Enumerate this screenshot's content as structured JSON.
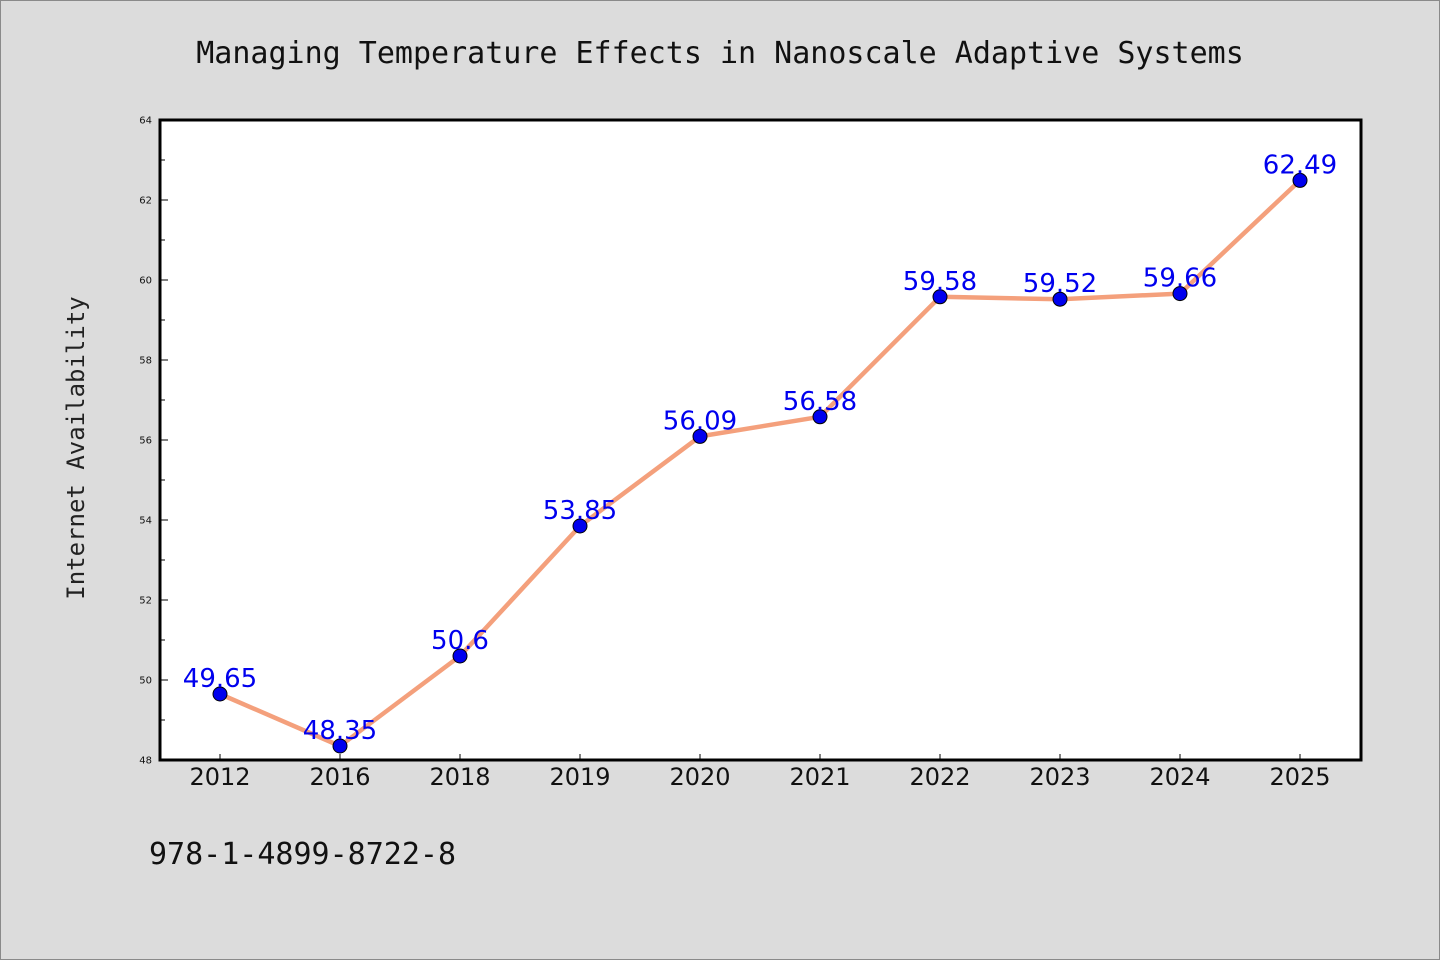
{
  "chart_data": {
    "type": "line",
    "title": "Managing Temperature Effects in Nanoscale Adaptive Systems",
    "xlabel": "",
    "ylabel": "Internet Availability",
    "categories": [
      "2012",
      "2016",
      "2018",
      "2019",
      "2020",
      "2021",
      "2022",
      "2023",
      "2024",
      "2025"
    ],
    "series": [
      {
        "values": [
          49.65,
          48.35,
          50.6,
          53.85,
          56.09,
          56.58,
          59.58,
          59.52,
          59.66,
          62.49
        ],
        "labels": [
          "49.65",
          "48.35",
          "50.6",
          "53.85",
          "56.09",
          "56.58",
          "59.58",
          "59.52",
          "59.66",
          "62.49"
        ]
      }
    ],
    "ylim": [
      48,
      64
    ],
    "yticks": [
      "48",
      "50",
      "52",
      "54",
      "56",
      "58",
      "60",
      "62",
      "64"
    ],
    "grid": false,
    "legend": "none",
    "colors": {
      "line": "#f4a07c",
      "marker": "#0000ee",
      "label": "#0000ee",
      "background": "#dcdcdc",
      "plot_background": "#ffffff"
    }
  },
  "footer": {
    "isbn": "978-1-4899-8722-8"
  }
}
